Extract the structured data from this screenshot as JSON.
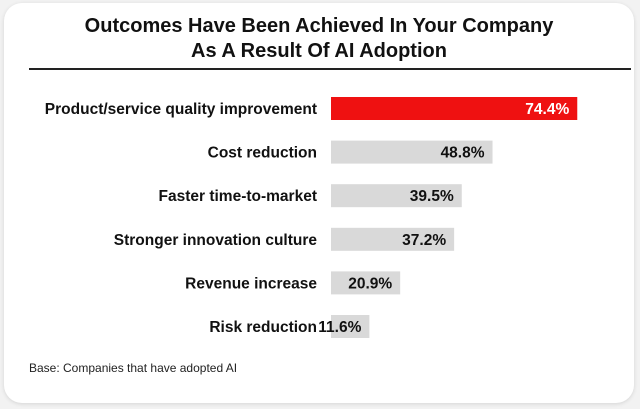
{
  "title_line1": "Outcomes Have Been Achieved In Your Company",
  "title_line2": "As A Result Of AI Adoption",
  "base_note": "Base: Companies that have adopted AI",
  "colors": {
    "highlight": "#ef1111",
    "bar": "#d9d9d9",
    "text": "#111111"
  },
  "chart_data": {
    "type": "bar",
    "orientation": "horizontal",
    "title": "Outcomes Have Been Achieved In Your Company As A Result Of AI Adoption",
    "categories": [
      "Product/service quality improvement",
      "Cost reduction",
      "Faster time-to-market",
      "Stronger innovation culture",
      "Revenue increase",
      "Risk reduction"
    ],
    "values": [
      74.4,
      48.8,
      39.5,
      37.2,
      20.9,
      11.6
    ],
    "value_labels": [
      "74.4%",
      "48.8%",
      "39.5%",
      "37.2%",
      "20.9%",
      "11.6%"
    ],
    "unit": "%",
    "highlight_index": 0,
    "xlim": [
      0,
      100
    ],
    "xlabel": "",
    "ylabel": "",
    "grid": false,
    "legend": "none"
  }
}
